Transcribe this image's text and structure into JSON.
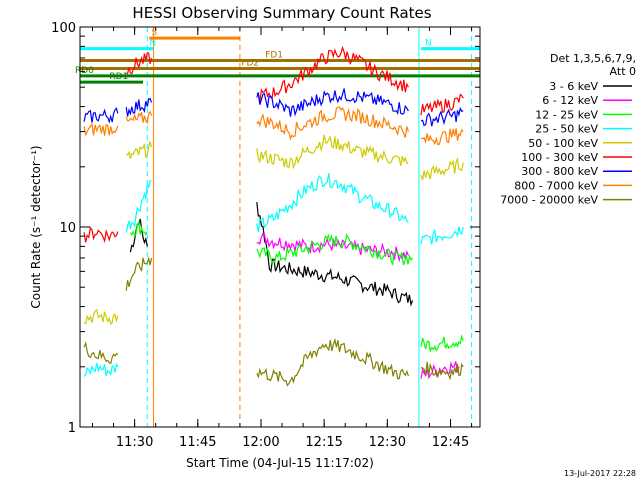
{
  "chart_data": {
    "type": "line",
    "title": "HESSI Observing Summary Count Rates",
    "xlabel": "Start Time (04-Jul-15 11:17:02)",
    "ylabel": "Count Rate (s⁻¹ detector⁻¹)",
    "yscale": "log",
    "xlim": [
      "11:17:02",
      "12:52:00"
    ],
    "ylim": [
      1,
      100
    ],
    "grid": false,
    "legend_position": "right",
    "x_ticks": [
      "11:30",
      "11:45",
      "12:00",
      "12:15",
      "12:30",
      "12:45"
    ],
    "y_ticks": [
      "1",
      "10",
      "100"
    ],
    "legend_header": [
      "Det 1,3,5,6,7,9,",
      "Att 0"
    ],
    "series": [
      {
        "name": "3 - 6 keV",
        "color": "#000000",
        "segments": [
          {
            "t": [
              "11:29:00",
              "11:30:00",
              "11:31:00",
              "11:32:00",
              "11:33:00"
            ],
            "y": [
              7.5,
              9.0,
              11.0,
              9.0,
              8.0
            ]
          },
          {
            "t": [
              "11:59:00",
              "12:02:00",
              "12:06:00",
              "12:10:00",
              "12:14:00",
              "12:18:00",
              "12:22:00",
              "12:26:00",
              "12:30:00",
              "12:33:00",
              "12:36:00"
            ],
            "y": [
              13.0,
              6.5,
              6.2,
              6.0,
              5.8,
              5.6,
              5.3,
              5.0,
              4.8,
              4.5,
              4.3
            ]
          }
        ]
      },
      {
        "name": "6 - 12 keV",
        "color": "#ff00ff",
        "segments": [
          {
            "t": [
              "11:59:00",
              "12:03:00",
              "12:07:00",
              "12:11:00",
              "12:15:00",
              "12:19:00",
              "12:23:00",
              "12:27:00",
              "12:31:00",
              "12:35:00"
            ],
            "y": [
              9.0,
              8.5,
              8.3,
              8.0,
              8.2,
              8.0,
              7.8,
              7.6,
              7.5,
              7.2
            ]
          },
          {
            "t": [
              "12:38:00",
              "12:41:00",
              "12:44:00",
              "12:47:00"
            ],
            "y": [
              1.8,
              1.9,
              2.0,
              2.0
            ]
          }
        ]
      },
      {
        "name": "12 - 25 keV",
        "color": "#00ff00",
        "segments": [
          {
            "t": [
              "11:29:00",
              "11:31:00",
              "11:33:00"
            ],
            "y": [
              9.5,
              10.0,
              9.5
            ]
          },
          {
            "t": [
              "11:59:00",
              "12:04:00",
              "12:08:00",
              "12:12:00",
              "12:16:00",
              "12:20:00",
              "12:24:00",
              "12:28:00",
              "12:32:00",
              "12:36:00"
            ],
            "y": [
              7.5,
              7.0,
              7.5,
              8.0,
              8.5,
              8.5,
              8.0,
              7.5,
              7.0,
              7.0
            ]
          },
          {
            "t": [
              "12:38:00",
              "12:42:00",
              "12:46:00",
              "12:48:00"
            ],
            "y": [
              2.6,
              2.6,
              2.7,
              2.7
            ]
          }
        ]
      },
      {
        "name": "25 - 50 keV",
        "color": "#00ffff",
        "segments": [
          {
            "t": [
              "11:18:00",
              "11:21:00",
              "11:24:00",
              "11:26:00"
            ],
            "y": [
              1.8,
              2.0,
              1.9,
              2.0
            ]
          },
          {
            "t": [
              "11:28:00",
              "11:30:00",
              "11:32:00",
              "11:34:00"
            ],
            "y": [
              10.0,
              11.0,
              14.0,
              17.0
            ]
          },
          {
            "t": [
              "11:59:00",
              "12:03:00",
              "12:07:00",
              "12:11:00",
              "12:15:00",
              "12:19:00",
              "12:23:00",
              "12:27:00",
              "12:31:00",
              "12:35:00"
            ],
            "y": [
              10.0,
              11.0,
              13.0,
              15.5,
              17.5,
              16.5,
              14.5,
              13.0,
              12.0,
              10.5
            ]
          },
          {
            "t": [
              "12:38:00",
              "12:42:00",
              "12:46:00",
              "12:48:00"
            ],
            "y": [
              8.5,
              9.0,
              9.5,
              10.0
            ]
          }
        ]
      },
      {
        "name": "50 - 100 keV",
        "color": "#cccc00",
        "segments": [
          {
            "t": [
              "11:18:00",
              "11:21:00",
              "11:24:00",
              "11:26:00"
            ],
            "y": [
              3.5,
              3.6,
              3.5,
              3.6
            ]
          },
          {
            "t": [
              "11:28:00",
              "11:30:00",
              "11:32:00",
              "11:34:00"
            ],
            "y": [
              22.0,
              23.0,
              24.0,
              25.0
            ]
          },
          {
            "t": [
              "11:59:00",
              "12:03:00",
              "12:07:00",
              "12:11:00",
              "12:15:00",
              "12:19:00",
              "12:23:00",
              "12:27:00",
              "12:31:00",
              "12:35:00"
            ],
            "y": [
              23.0,
              22.0,
              21.0,
              24.0,
              27.0,
              26.0,
              24.0,
              23.0,
              22.0,
              21.0
            ]
          },
          {
            "t": [
              "12:38:00",
              "12:42:00",
              "12:46:00",
              "12:48:00"
            ],
            "y": [
              18.0,
              19.0,
              20.0,
              21.0
            ]
          }
        ]
      },
      {
        "name": "100 - 300 keV",
        "color": "#ff0000",
        "segments": [
          {
            "t": [
              "11:18:00",
              "11:21:00",
              "11:24:00",
              "11:26:00"
            ],
            "y": [
              9.0,
              9.5,
              9.0,
              9.5
            ]
          },
          {
            "t": [
              "11:28:00",
              "11:30:00",
              "11:32:00",
              "11:34:00"
            ],
            "y": [
              60.0,
              65.0,
              68.0,
              70.0
            ]
          },
          {
            "t": [
              "11:59:00",
              "12:03:00",
              "12:07:00",
              "12:11:00",
              "12:15:00",
              "12:19:00",
              "12:23:00",
              "12:27:00",
              "12:31:00",
              "12:35:00"
            ],
            "y": [
              45.0,
              47.0,
              52.0,
              60.0,
              70.0,
              75.0,
              68.0,
              60.0,
              55.0,
              50.0
            ]
          },
          {
            "t": [
              "12:38:00",
              "12:42:00",
              "12:46:00",
              "12:48:00"
            ],
            "y": [
              38.0,
              40.0,
              42.0,
              44.0
            ]
          }
        ]
      },
      {
        "name": "300 - 800 keV",
        "color": "#0000ff",
        "segments": [
          {
            "t": [
              "11:18:00",
              "11:21:00",
              "11:24:00",
              "11:26:00"
            ],
            "y": [
              35.0,
              36.0,
              36.0,
              37.0
            ]
          },
          {
            "t": [
              "11:28:00",
              "11:30:00",
              "11:32:00",
              "11:34:00"
            ],
            "y": [
              38.0,
              40.0,
              41.0,
              42.0
            ]
          },
          {
            "t": [
              "11:59:00",
              "12:03:00",
              "12:07:00",
              "12:11:00",
              "12:15:00",
              "12:19:00",
              "12:23:00",
              "12:27:00",
              "12:31:00",
              "12:35:00"
            ],
            "y": [
              44.0,
              42.0,
              38.0,
              41.0,
              45.0,
              46.0,
              45.0,
              43.0,
              41.0,
              38.0
            ]
          },
          {
            "t": [
              "12:38:00",
              "12:42:00",
              "12:46:00",
              "12:48:00"
            ],
            "y": [
              34.0,
              35.0,
              36.0,
              38.0
            ]
          }
        ]
      },
      {
        "name": "800 - 7000 keV",
        "color": "#ff8000",
        "segments": [
          {
            "t": [
              "11:18:00",
              "11:21:00",
              "11:24:00",
              "11:26:00"
            ],
            "y": [
              30.0,
              31.0,
              31.0,
              32.0
            ]
          },
          {
            "t": [
              "11:28:00",
              "11:30:00",
              "11:32:00",
              "11:34:00"
            ],
            "y": [
              33.0,
              34.0,
              35.0,
              36.0
            ]
          },
          {
            "t": [
              "11:59:00",
              "12:03:00",
              "12:07:00",
              "12:11:00",
              "12:15:00",
              "12:19:00",
              "12:23:00",
              "12:27:00",
              "12:31:00",
              "12:35:00"
            ],
            "y": [
              35.0,
              33.0,
              30.0,
              33.0,
              36.0,
              37.0,
              36.0,
              34.0,
              32.0,
              30.0
            ]
          },
          {
            "t": [
              "12:38:00",
              "12:42:00",
              "12:46:00",
              "12:48:00"
            ],
            "y": [
              27.0,
              28.0,
              29.0,
              30.0
            ]
          }
        ]
      },
      {
        "name": "7000 - 20000 keV",
        "color": "#808000",
        "segments": [
          {
            "t": [
              "11:18:00",
              "11:21:00",
              "11:24:00",
              "11:26:00"
            ],
            "y": [
              2.5,
              2.3,
              2.2,
              2.3
            ]
          },
          {
            "t": [
              "11:28:00",
              "11:30:00",
              "11:32:00",
              "11:34:00"
            ],
            "y": [
              5.0,
              6.0,
              6.5,
              7.0
            ]
          },
          {
            "t": [
              "11:59:00",
              "12:03:00",
              "12:07:00",
              "12:11:00",
              "12:15:00",
              "12:19:00",
              "12:23:00",
              "12:27:00",
              "12:31:00",
              "12:35:00"
            ],
            "y": [
              1.9,
              1.8,
              1.7,
              2.2,
              2.6,
              2.5,
              2.3,
              2.1,
              1.9,
              1.8
            ]
          },
          {
            "t": [
              "12:38:00",
              "12:42:00",
              "12:46:00",
              "12:48:00"
            ],
            "y": [
              2.0,
              1.9,
              1.9,
              2.0
            ]
          }
        ]
      }
    ],
    "annotations": [
      {
        "label": "S",
        "color": "#ff8000",
        "t_start": "11:33:30",
        "t_end": "11:55:00",
        "y": 88
      },
      {
        "label": "N",
        "color": "#00ffff",
        "t_start": "11:17:02",
        "t_end": "11:34:30",
        "y": 78
      },
      {
        "label": "N",
        "color": "#00ffff",
        "t_start": "12:38:00",
        "t_end": "12:52:00",
        "y": 78
      },
      {
        "label": "FD1",
        "color": "#a07000",
        "t_start": "11:17:02",
        "t_end": "12:52:00",
        "y": 68
      },
      {
        "label": "FD2",
        "color": "#a07000",
        "t_start": "11:17:02",
        "t_end": "12:52:00",
        "y": 62
      },
      {
        "label": "RD0",
        "color": "#008000",
        "t_start": "11:17:02",
        "t_end": "12:52:00",
        "y": 57
      },
      {
        "label": "RD1",
        "color": "#008000",
        "t_start": "11:17:02",
        "t_end": "11:32:00",
        "y": 53
      }
    ],
    "vertical_markers": [
      {
        "t": "11:33:00",
        "color": "#00ffff",
        "style": "dashed"
      },
      {
        "t": "11:34:30",
        "color": "#ff8000",
        "style": "solid"
      },
      {
        "t": "11:55:00",
        "color": "#ff8000",
        "style": "dashed"
      },
      {
        "t": "12:37:30",
        "color": "#00ffff",
        "style": "solid"
      },
      {
        "t": "12:50:00",
        "color": "#00ffff",
        "style": "dashed"
      }
    ]
  },
  "footer": {
    "timestamp": "13-Jul-2017 22:28"
  }
}
